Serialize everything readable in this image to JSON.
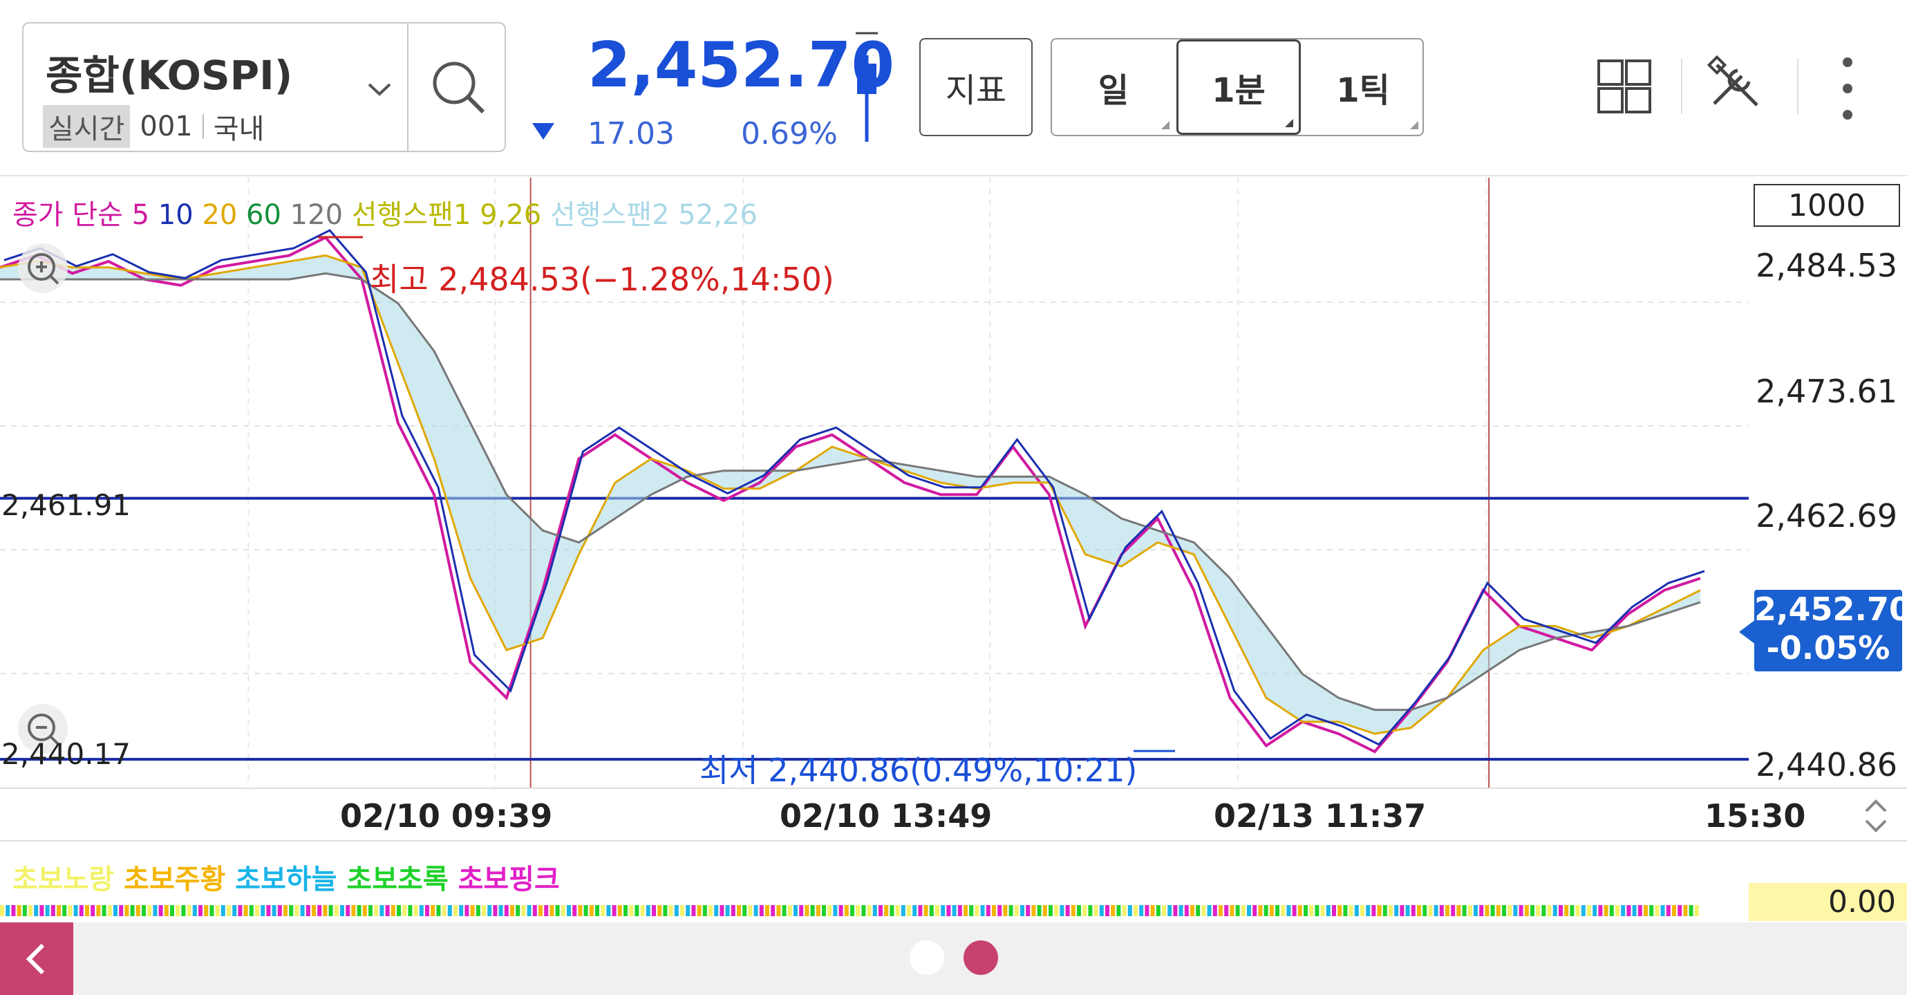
{
  "header": {
    "symbol_name": "종합(KOSPI)",
    "realtime_badge": "실시간",
    "code": "001",
    "market": "국내",
    "price": "2,452.70",
    "change": "17.03",
    "change_pct": "0.69%",
    "indicator_btn": "지표",
    "periods": [
      {
        "label": "일",
        "selected": false
      },
      {
        "label": "1분",
        "selected": true
      },
      {
        "label": "1틱",
        "selected": false
      }
    ],
    "icons": [
      "search-icon",
      "chevron-down-icon",
      "layout-grid-icon",
      "tools-icon",
      "more-vertical-icon"
    ]
  },
  "legend": {
    "close_simple": "종가 단순",
    "ma": [
      {
        "label": "5",
        "color": "#d11aa0"
      },
      {
        "label": "10",
        "color": "#1a2fb0"
      },
      {
        "label": "20",
        "color": "#e0a800"
      },
      {
        "label": "60",
        "color": "#14903c"
      },
      {
        "label": "120",
        "color": "#777777"
      }
    ],
    "span1": "선행스팬1 9,26",
    "span2": "선행스팬2 52,26",
    "span1_color": "#b8b800",
    "span2_color": "#a9d8e6"
  },
  "chart": {
    "scale_box": "1000",
    "y_labels": [
      "2,484.53",
      "2,473.61",
      "2,462.69",
      "2,440.86"
    ],
    "left_labels": [
      "2,461.91",
      "2,440.17"
    ],
    "current_price": "2,452.70",
    "current_pct": "-0.05%",
    "high_label": "최고 2,484.53(−1.28%,14:50)",
    "low_label": "최저 2,440.86(0.49%,10:21)",
    "x_labels": [
      "02/10 09:39",
      "02/10 13:49",
      "02/13 11:37",
      "15:30"
    ]
  },
  "chart_data": {
    "type": "line",
    "title": "",
    "xlabel": "",
    "ylabel": "",
    "ylim": [
      2438.5,
      2489.5
    ],
    "x_ticks": [
      "02/10 09:39",
      "02/10 13:49",
      "02/13 11:37",
      "15:30"
    ],
    "reference_lines": [
      2461.91,
      2440.17
    ],
    "high": 2484.53,
    "low": 2440.86,
    "last": 2452.7,
    "series": [
      {
        "name": "5",
        "values": [
          2482,
          2483,
          2481.5,
          2482.5,
          2481,
          2480.5,
          2482,
          2482.5,
          2483,
          2484.5,
          2481,
          2469,
          2463,
          2449,
          2446,
          2455,
          2466,
          2468,
          2466,
          2464,
          2462.5,
          2464,
          2467,
          2468,
          2466,
          2464,
          2463,
          2463,
          2467,
          2463,
          2452,
          2458,
          2461,
          2455,
          2446,
          2442,
          2444,
          2443,
          2441.5,
          2445,
          2449,
          2455,
          2452,
          2451,
          2450,
          2453,
          2455,
          2456
        ]
      },
      {
        "name": "20",
        "values": [
          2482,
          2482.5,
          2482,
          2482,
          2481.5,
          2481,
          2481.5,
          2482,
          2482.5,
          2483,
          2482,
          2474,
          2466,
          2456,
          2450,
          2451,
          2458,
          2464,
          2466,
          2465,
          2463.5,
          2463.5,
          2465,
          2467,
          2466,
          2465,
          2464,
          2463.5,
          2464,
          2464,
          2458,
          2457,
          2459,
          2458,
          2452,
          2446,
          2444,
          2444,
          2443,
          2443.5,
          2446,
          2450,
          2452,
          2452,
          2451,
          2452,
          2453.5,
          2455
        ]
      },
      {
        "name": "120",
        "values": [
          2481,
          2481,
          2481,
          2481,
          2481,
          2481,
          2481,
          2481,
          2481,
          2481.5,
          2481,
          2479,
          2475,
          2469,
          2463,
          2460,
          2459,
          2461,
          2463,
          2464.5,
          2465,
          2465,
          2465,
          2465.5,
          2466,
          2465.5,
          2465,
          2464.5,
          2464.5,
          2464.5,
          2463,
          2461,
          2460,
          2459,
          2456,
          2452,
          2448,
          2446,
          2445,
          2445,
          2446,
          2448,
          2450,
          2451,
          2451.5,
          2452,
          2453,
          2454
        ]
      }
    ]
  },
  "sub": {
    "legend": [
      {
        "label": "초보노랑",
        "color": "#f2f26a"
      },
      {
        "label": "초보주황",
        "color": "#f5b400"
      },
      {
        "label": "초보하늘",
        "color": "#1ab4e8"
      },
      {
        "label": "초보초록",
        "color": "#1fd12a"
      },
      {
        "label": "초보핑크",
        "color": "#e020c8"
      }
    ],
    "value": "0.00"
  },
  "footer": {
    "back_icon": "chevron-left-icon",
    "page_dots": 2,
    "active_dot": 2,
    "accent": "#c8426e"
  }
}
